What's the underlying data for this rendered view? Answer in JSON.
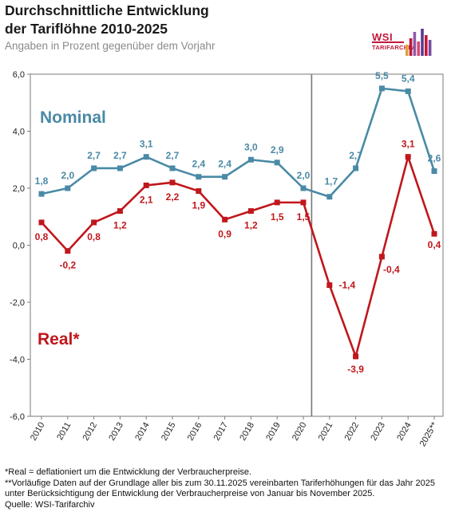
{
  "header": {
    "title_line1": "Durchschnittliche Entwicklung",
    "title_line2": "der Tariflöhne 2010-2025",
    "subtitle": "Angaben in Prozent gegenüber dem Vorjahr"
  },
  "logo": {
    "name": "WSI",
    "sub": "TARIFARCHIV",
    "bar_colors": [
      "#e0a23a",
      "#c0183a",
      "#8e5aa8",
      "#d44a7a",
      "#5a3a8e",
      "#c0183a",
      "#7a4aa0"
    ]
  },
  "chart_data": {
    "type": "line",
    "categories": [
      "2010",
      "2011",
      "2012",
      "2013",
      "2014",
      "2015",
      "2016",
      "2017",
      "2018",
      "2019",
      "2020",
      "2021",
      "2022",
      "2023",
      "2024",
      "2025**"
    ],
    "series": [
      {
        "name": "Nominal",
        "color": "#4a8aa6",
        "values": [
          1.8,
          2.0,
          2.7,
          2.7,
          3.1,
          2.7,
          2.4,
          2.4,
          3.0,
          2.9,
          2.0,
          1.7,
          2.7,
          5.5,
          5.4,
          2.6
        ],
        "labels": [
          "1,8",
          "2,0",
          "2,7",
          "2,7",
          "3,1",
          "2,7",
          "2,4",
          "2,4",
          "3,0",
          "2,9",
          "2,0",
          "1,7",
          "2,7",
          "5,5",
          "5,4",
          "2,6"
        ]
      },
      {
        "name": "Real*",
        "color": "#c0171c",
        "values": [
          0.8,
          -0.2,
          0.8,
          1.2,
          2.1,
          2.2,
          1.9,
          0.9,
          1.2,
          1.5,
          1.5,
          -1.4,
          -3.9,
          -0.4,
          3.1,
          0.4
        ],
        "labels": [
          "0,8",
          "-0,2",
          "0,8",
          "1,2",
          "2,1",
          "2,2",
          "1,9",
          "0,9",
          "1,2",
          "1,5",
          "1,5",
          "-1,4",
          "-3,9",
          "-0,4",
          "3,1",
          "0,4"
        ]
      }
    ],
    "ylim": [
      -6.0,
      6.0
    ],
    "yticks": [
      -6.0,
      -4.0,
      -2.0,
      0.0,
      2.0,
      4.0,
      6.0
    ],
    "ytick_labels": [
      "-6,0",
      "-4,0",
      "-2,0",
      "0,0",
      "2,0",
      "4,0",
      "6,0"
    ],
    "divider_after": "2020",
    "grid": false
  },
  "footnotes": {
    "line1": "*Real = deflationiert um die Entwicklung der Verbraucherpreise.",
    "line2": "**Vorläufige Daten auf der Grundlage aller bis zum 30.11.2025 vereinbarten Tariferhöhungen für das Jahr 2025",
    "line3": "unter Berücksichtigung der Entwicklung der Verbraucherpreise von Januar bis November 2025.",
    "line4": "Quelle: WSI-Tarifarchiv"
  }
}
